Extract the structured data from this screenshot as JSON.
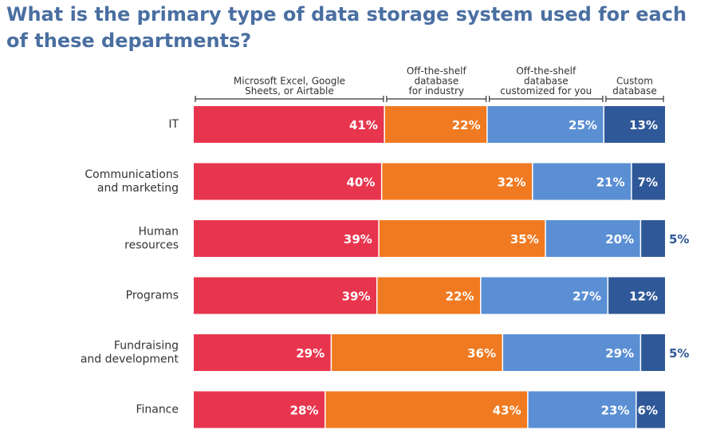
{
  "title": "What is the primary type of data storage system used for each of these departments?",
  "chart_data": {
    "type": "bar",
    "orientation": "horizontal",
    "stacked": true,
    "categories": [
      [
        "IT"
      ],
      [
        "Communications",
        "and marketing"
      ],
      [
        "Human",
        "resources"
      ],
      [
        "Programs"
      ],
      [
        "Fundraising",
        "and development"
      ],
      [
        "Finance"
      ]
    ],
    "series": [
      {
        "name": [
          "Microsoft Excel, Google",
          "Sheets, or Airtable"
        ],
        "color": "#e8354e",
        "values": [
          41,
          40,
          39,
          39,
          29,
          28
        ],
        "labels": [
          "41%",
          "40%",
          "39%",
          "39%",
          "29%",
          "28%"
        ]
      },
      {
        "name": [
          "Off-the-shelf",
          "database",
          "for industry"
        ],
        "color": "#f07a21",
        "values": [
          22,
          32,
          35,
          22,
          36,
          43
        ],
        "labels": [
          "22%",
          "32%",
          "35%",
          "22%",
          "36%",
          "43%"
        ]
      },
      {
        "name": [
          "Off-the-shelf",
          "database",
          "customized for you"
        ],
        "color": "#5b8fd4",
        "values": [
          25,
          21,
          20,
          27,
          29,
          23
        ],
        "labels": [
          "25%",
          "21%",
          "20%",
          "27%",
          "29%",
          "23%"
        ]
      },
      {
        "name": [
          "Custom",
          "database"
        ],
        "color": "#2f5898",
        "values": [
          13,
          7,
          5,
          12,
          5,
          6
        ],
        "labels": [
          "13%",
          "7%",
          "5%",
          "12%",
          "5%",
          "6%"
        ]
      }
    ],
    "value_label_colors": {
      "inside": "#ffffff",
      "outside": "#2f5898"
    },
    "grid": false,
    "legend": "top"
  }
}
